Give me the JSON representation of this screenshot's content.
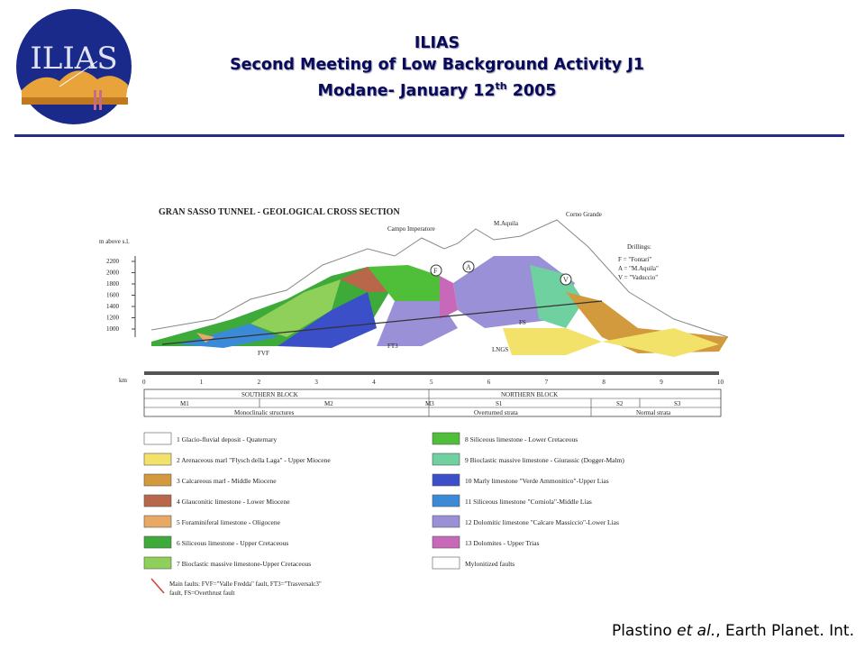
{
  "header": {
    "logo_text": "ILIAS",
    "title_line1": "ILIAS",
    "title_line2": "Second Meeting of Low Background Activity J1",
    "title_line3_main": "Modane- January 12",
    "title_line3_sup": "th",
    "title_line3_year": " 2005"
  },
  "figure": {
    "title": "GRAN SASSO TUNNEL - GEOLOGICAL CROSS SECTION",
    "y_axis_label": "m above s.l.",
    "y_ticks": [
      "2200",
      "2000",
      "1800",
      "1600",
      "1400",
      "1200",
      "1000"
    ],
    "peaks": [
      "Campo Imperatore",
      "M.Aquila",
      "Corno Grande"
    ],
    "drillings_title": "Drillings:",
    "drillings": [
      "F = \"Fontari\"",
      "A = \"M.Aquila\"",
      "V = \"Vaduccio\""
    ],
    "km_label": "km",
    "km_ticks": [
      "0",
      "1",
      "2",
      "3",
      "4",
      "5",
      "6",
      "7",
      "8",
      "9",
      "10"
    ],
    "fault_labels": [
      "FVF",
      "FT3",
      "LNGS",
      "FS"
    ],
    "blocks": {
      "southern": "SOUTHERN BLOCK",
      "northern": "NORTHERN BLOCK",
      "m1": "M1",
      "m2": "M2",
      "m3": "M3",
      "s1": "S1",
      "s2": "S2",
      "s3": "S3",
      "monoclinal": "Monoclinalic structures",
      "overturned": "Overturned strata",
      "normal": "Normal strata"
    },
    "legend_left": [
      {
        "num": "1",
        "text": "Glacio-fluvial deposit - Quaternary",
        "color": "#ffffff"
      },
      {
        "num": "2",
        "text": "Arenaceous marl \"Flysch della Laga\" - Upper Miocene",
        "color": "#f2e26a"
      },
      {
        "num": "3",
        "text": "Calcareous marl - Middle Miocene",
        "color": "#d29a3c"
      },
      {
        "num": "4",
        "text": "Glauconitic limestone - Lower Miocene",
        "color": "#b8674a"
      },
      {
        "num": "5",
        "text": "Foraminiferal limestone - Oligocene",
        "color": "#e8a866"
      },
      {
        "num": "6",
        "text": "Siliceous limestone - Upper Cretaceous",
        "color": "#3eaa3a"
      },
      {
        "num": "7",
        "text": "Bioclastic massive limestone-Upper Cretaceous",
        "color": "#8fd05a"
      }
    ],
    "legend_right": [
      {
        "num": "8",
        "text": "Siliceous limestone - Lower Cretaceous",
        "color": "#4fbf3a"
      },
      {
        "num": "9",
        "text": "Bioclastic massive limestone - Giurassic (Dogger-Malm)",
        "color": "#6fd0a0"
      },
      {
        "num": "10",
        "text": "Marly limestone \"Verde Ammonitico\"-Upper Lias",
        "color": "#3a4fc8"
      },
      {
        "num": "11",
        "text": "Siliceous limestone \"Corniola\"-Middle Lias",
        "color": "#3a8ad8"
      },
      {
        "num": "12",
        "text": "Dolomitic limestone \"Calcare Massiccio\"-Lower Lias",
        "color": "#9a90d8"
      },
      {
        "num": "13",
        "text": "Dolomites - Upper Trias",
        "color": "#c868b8"
      },
      {
        "num": "",
        "text": "Mylonitized faults",
        "color": "#ffffff"
      }
    ],
    "faults_note_line1": "Main faults: FVF=\"Valle Fredda\" fault, FT3=\"Trasversalc3\"",
    "faults_note_line2": "fault, FS=Overthrust fault"
  },
  "citation": {
    "author": "Plastino ",
    "etal": "et al.",
    "rest": ", Earth Planet. Int."
  }
}
